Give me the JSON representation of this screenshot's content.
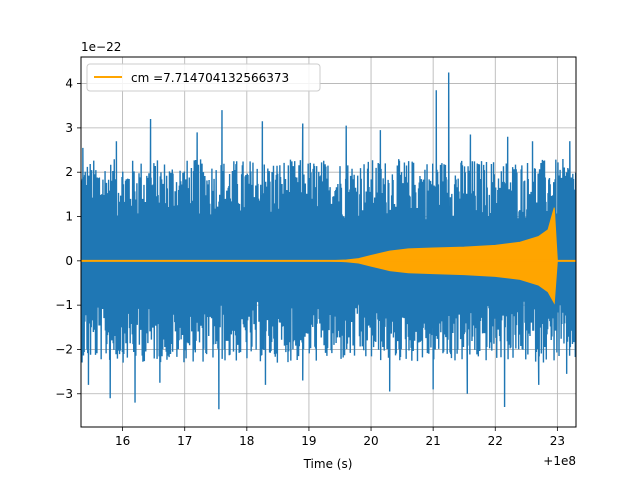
{
  "chart_data": {
    "type": "line",
    "title": "",
    "xlabel": "Time (s)",
    "ylabel": "",
    "x_offset_label": "+1e8",
    "y_scale_label": "1e−22",
    "xlim": [
      15.33,
      23.3
    ],
    "ylim": [
      -3.75,
      4.6
    ],
    "x_ticks": [
      16,
      17,
      18,
      19,
      20,
      21,
      22,
      23
    ],
    "x_tick_labels": [
      "16",
      "17",
      "18",
      "19",
      "20",
      "21",
      "22",
      "23"
    ],
    "y_ticks": [
      -3,
      -2,
      -1,
      0,
      1,
      2,
      3,
      4
    ],
    "y_tick_labels": [
      "−3",
      "−2",
      "−1",
      "0",
      "1",
      "2",
      "3",
      "4"
    ],
    "grid": true,
    "legend_position": "top-left",
    "series": [
      {
        "name": "",
        "color": "#1f77b4",
        "kind": "noisy strain data",
        "envelope": {
          "typical_max": 2.0,
          "typical_min": -2.0
        },
        "peaks": [
          {
            "x": 15.36,
            "y": 2.55
          },
          {
            "x": 15.9,
            "y": 2.7
          },
          {
            "x": 16.45,
            "y": 3.2
          },
          {
            "x": 17.2,
            "y": 2.9
          },
          {
            "x": 17.6,
            "y": 3.4
          },
          {
            "x": 18.25,
            "y": 3.15
          },
          {
            "x": 18.9,
            "y": 3.1
          },
          {
            "x": 19.6,
            "y": 3.05
          },
          {
            "x": 20.15,
            "y": 2.95
          },
          {
            "x": 21.05,
            "y": 3.85
          },
          {
            "x": 21.25,
            "y": 4.25
          },
          {
            "x": 21.6,
            "y": 2.85
          },
          {
            "x": 22.2,
            "y": 2.8
          },
          {
            "x": 22.6,
            "y": 2.7
          },
          {
            "x": 23.2,
            "y": 2.7
          }
        ],
        "troughs": [
          {
            "x": 15.45,
            "y": -2.8
          },
          {
            "x": 15.8,
            "y": -3.1
          },
          {
            "x": 16.2,
            "y": -3.2
          },
          {
            "x": 16.6,
            "y": -2.75
          },
          {
            "x": 17.55,
            "y": -3.35
          },
          {
            "x": 18.3,
            "y": -2.8
          },
          {
            "x": 18.9,
            "y": -2.7
          },
          {
            "x": 20.3,
            "y": -2.95
          },
          {
            "x": 21.0,
            "y": -2.9
          },
          {
            "x": 21.55,
            "y": -3.0
          },
          {
            "x": 22.15,
            "y": -3.3
          },
          {
            "x": 22.7,
            "y": -2.8
          },
          {
            "x": 23.15,
            "y": -2.55
          }
        ]
      },
      {
        "name": "cm =7.714704132566373",
        "color": "#ffa500",
        "kind": "template chirp",
        "envelope_points": [
          {
            "x": 15.33,
            "y": 0.0
          },
          {
            "x": 19.3,
            "y": 0.0
          },
          {
            "x": 19.6,
            "y": 0.02
          },
          {
            "x": 19.8,
            "y": 0.05
          },
          {
            "x": 20.0,
            "y": 0.12
          },
          {
            "x": 20.3,
            "y": 0.22
          },
          {
            "x": 20.6,
            "y": 0.27
          },
          {
            "x": 21.0,
            "y": 0.29
          },
          {
            "x": 21.5,
            "y": 0.31
          },
          {
            "x": 22.0,
            "y": 0.35
          },
          {
            "x": 22.4,
            "y": 0.42
          },
          {
            "x": 22.7,
            "y": 0.55
          },
          {
            "x": 22.85,
            "y": 0.7
          },
          {
            "x": 22.95,
            "y": 1.2
          },
          {
            "x": 23.0,
            "y": 0.0
          },
          {
            "x": 23.3,
            "y": 0.0
          }
        ]
      }
    ]
  }
}
